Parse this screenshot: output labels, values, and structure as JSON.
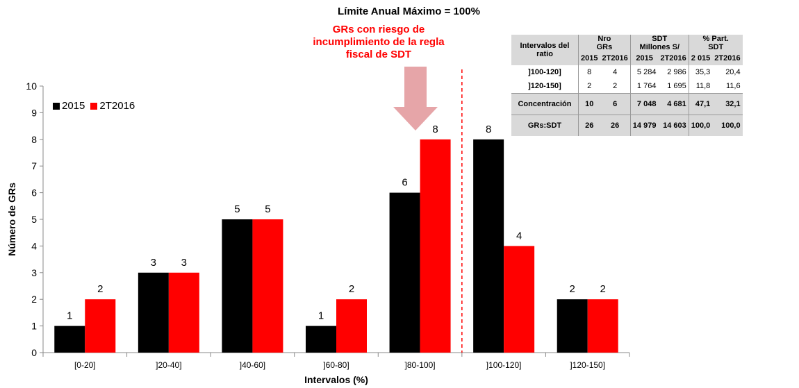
{
  "title_partial": "",
  "top_title": "Límite Anual Máximo = 100%",
  "risk_annotation": "GRs con riesgo de incumplimiento de la regla fiscal de SDT",
  "colors": {
    "series_2015": "#000000",
    "series_2T2016": "#ff0000",
    "arrow": "#e6a5a8",
    "limit_line": "#ff0000"
  },
  "chart_data": {
    "type": "bar",
    "categories": [
      "[0-20]",
      "]20-40]",
      "]40-60]",
      "]60-80]",
      "]80-100]",
      "]100-120]",
      "]120-150]"
    ],
    "series": [
      {
        "name": "2015",
        "values": [
          1,
          3,
          5,
          1,
          6,
          8,
          2
        ]
      },
      {
        "name": "2T2016",
        "values": [
          2,
          3,
          5,
          2,
          8,
          4,
          2
        ]
      }
    ],
    "xlabel": "Intervalos (%)",
    "ylabel": "Número de GRs",
    "ylim": [
      0,
      10
    ],
    "yticks": [
      0,
      1,
      2,
      3,
      4,
      5,
      6,
      7,
      8,
      9,
      10
    ],
    "legend_position": "top-left",
    "grid": false
  },
  "table": {
    "header": {
      "col_label": "Intervalos del ratio",
      "group_1": [
        "Nro",
        "GRs"
      ],
      "group_2": [
        "SDT",
        "Millones S/"
      ],
      "group_3": [
        "% Part.",
        "SDT"
      ],
      "sub": [
        "2015",
        "2T2016",
        "2015",
        "2T2016",
        "2 015",
        "2T2016"
      ]
    },
    "rows": [
      {
        "label": "]100-120]",
        "cells": [
          "8",
          "4",
          "5 284",
          "2 986",
          "35,3",
          "20,4"
        ]
      },
      {
        "label": "]120-150]",
        "cells": [
          "2",
          "2",
          "1 764",
          "1 695",
          "11,8",
          "11,6"
        ]
      }
    ],
    "totals": [
      {
        "label": "Concentración",
        "cells": [
          "10",
          "6",
          "7 048",
          "4 681",
          "47,1",
          "32,1"
        ]
      },
      {
        "label": "GRs:SDT",
        "cells": [
          "26",
          "26",
          "14 979",
          "14 603",
          "100,0",
          "100,0"
        ]
      }
    ]
  }
}
